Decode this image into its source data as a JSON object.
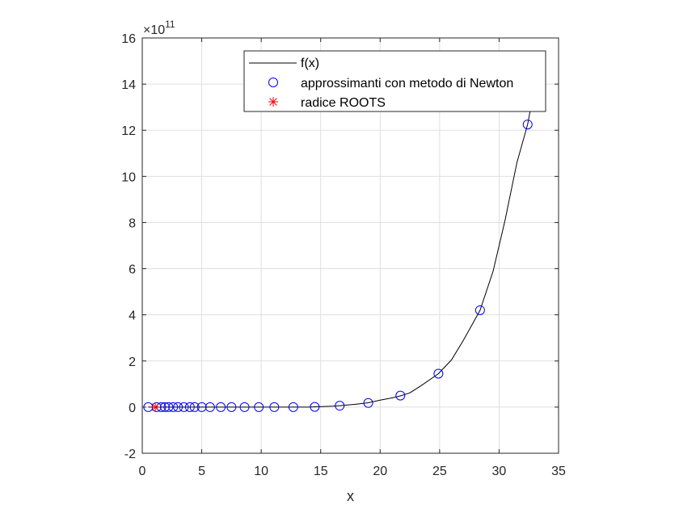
{
  "chart_data": {
    "type": "line",
    "title": "",
    "xlabel": "x",
    "ylabel": "",
    "xlim": [
      0,
      35
    ],
    "ylim": [
      -2,
      16
    ],
    "x_ticks": [
      "0",
      "5",
      "10",
      "15",
      "20",
      "25",
      "30",
      "35"
    ],
    "y_ticks": [
      "-2",
      "0",
      "2",
      "4",
      "6",
      "8",
      "10",
      "12",
      "14",
      "16"
    ],
    "y_exponent_base": "×10",
    "y_exponent_power": "11",
    "grid": true,
    "legend_position": "top-right",
    "series": [
      {
        "name": "f(x)",
        "kind": "line",
        "color": "#000000",
        "x": [
          0.5,
          5,
          10,
          14,
          16,
          17,
          18,
          19,
          20,
          21,
          21.8,
          22.5,
          23.5,
          24.9,
          26,
          27,
          28.4,
          29.5,
          30.5,
          31.5,
          32.4,
          33.0
        ],
        "y": [
          0,
          0,
          0,
          0,
          0.04,
          0.08,
          0.13,
          0.19,
          0.3,
          0.4,
          0.5,
          0.62,
          0.95,
          1.45,
          2.05,
          2.9,
          4.2,
          5.9,
          8.1,
          10.6,
          12.25,
          13.9
        ]
      },
      {
        "name": "approssimanti con metodo di Newton",
        "kind": "marker-circle",
        "color": "#0000ff",
        "x": [
          0.5,
          1.2,
          1.6,
          1.9,
          2.2,
          2.6,
          3.0,
          3.5,
          4.0,
          4.4,
          5.0,
          5.7,
          6.6,
          7.5,
          8.6,
          9.8,
          11.1,
          12.7,
          14.5,
          16.6,
          19.0,
          21.7,
          24.9,
          28.4,
          32.4
        ],
        "y": [
          0,
          0,
          0,
          0,
          0,
          0,
          0,
          0,
          0,
          0,
          0,
          0,
          0,
          0,
          0,
          0,
          0,
          0,
          0.01,
          0.06,
          0.18,
          0.5,
          1.45,
          4.2,
          12.25
        ]
      },
      {
        "name": "radice ROOTS",
        "kind": "marker-asterisk",
        "color": "#ff0000",
        "x": [
          1.1
        ],
        "y": [
          0
        ]
      }
    ]
  }
}
